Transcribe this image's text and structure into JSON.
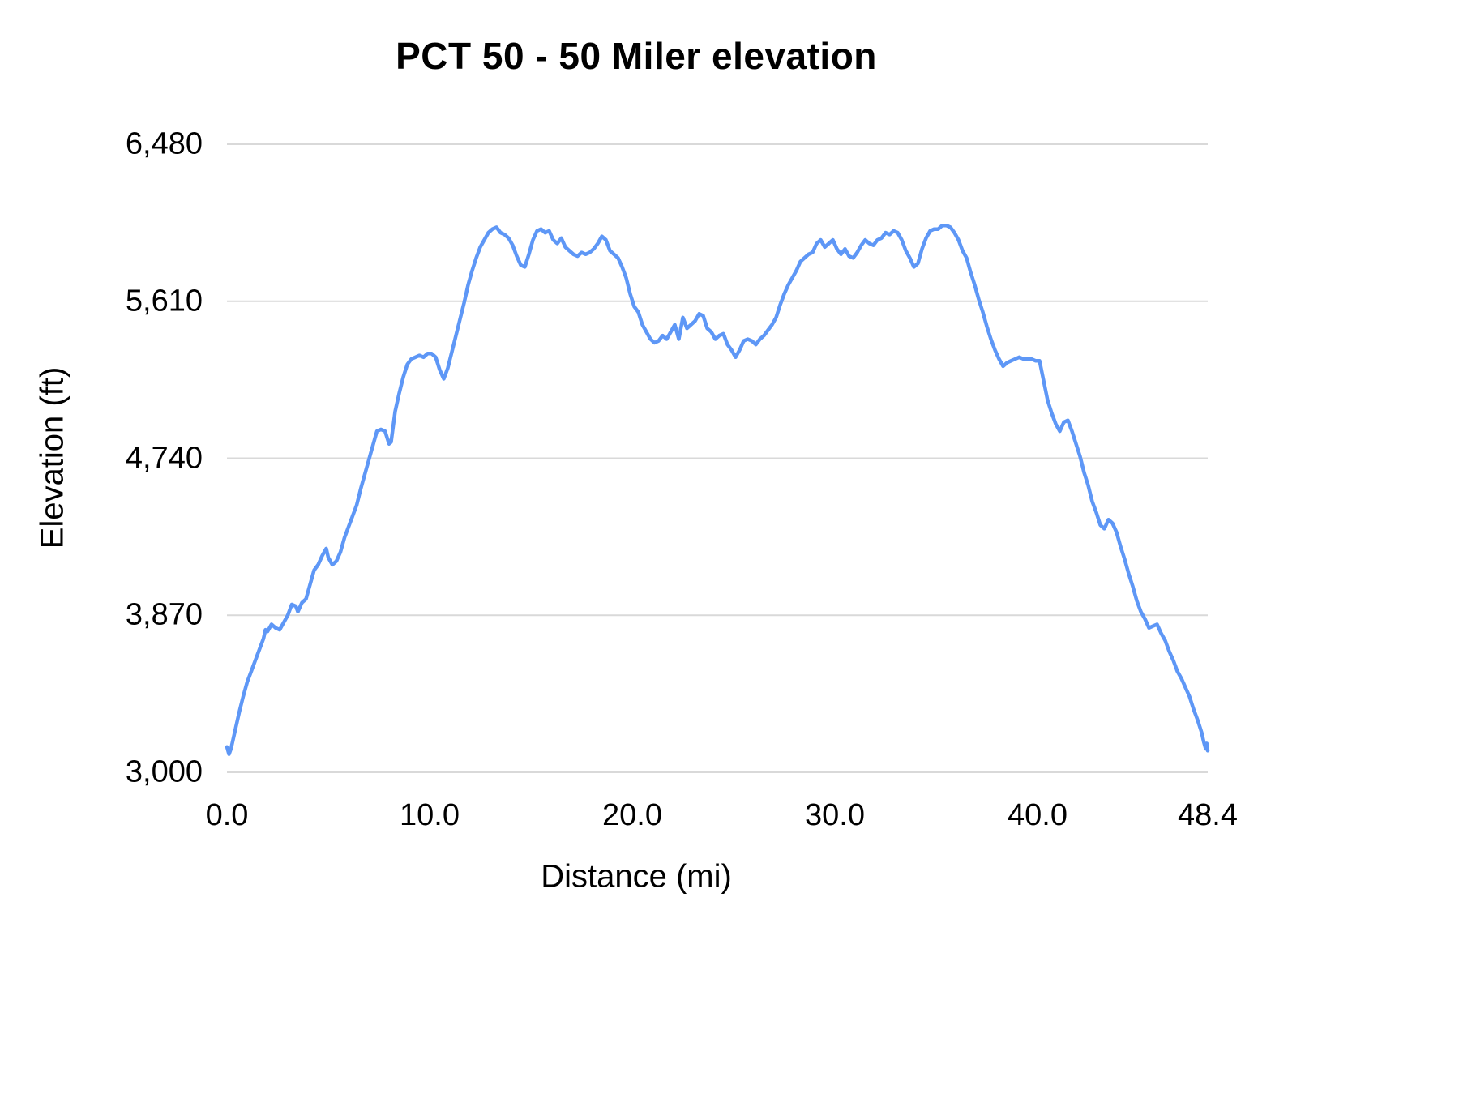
{
  "colors": {
    "line": "#5e97f6",
    "gridline": "#d9d9d9",
    "background": "#ffffff",
    "text": "#000000"
  },
  "chart_data": {
    "type": "line",
    "title": "PCT 50 - 50 Miler elevation",
    "xlabel": "Distance (mi)",
    "ylabel": "Elevation (ft)",
    "xlim": [
      0,
      48.4
    ],
    "ylim": [
      3000,
      6480
    ],
    "grid": "horizontal-only",
    "legend_position": "none",
    "y_ticks": [
      {
        "label": "6,480",
        "value": 6480
      },
      {
        "label": "5,610",
        "value": 5610
      },
      {
        "label": "4,740",
        "value": 4740
      },
      {
        "label": "3,870",
        "value": 3870
      },
      {
        "label": "3,000",
        "value": 3000
      }
    ],
    "x_ticks": [
      {
        "label": "0.0",
        "value": 0.0
      },
      {
        "label": "10.0",
        "value": 10.0
      },
      {
        "label": "20.0",
        "value": 20.0
      },
      {
        "label": "30.0",
        "value": 30.0
      },
      {
        "label": "40.0",
        "value": 40.0
      },
      {
        "label": "48.4",
        "value": 48.4
      }
    ],
    "series": [
      {
        "name": "Elevation",
        "points": [
          [
            0.0,
            3140
          ],
          [
            0.1,
            3100
          ],
          [
            0.2,
            3130
          ],
          [
            0.4,
            3230
          ],
          [
            0.6,
            3330
          ],
          [
            0.8,
            3420
          ],
          [
            1.0,
            3500
          ],
          [
            1.2,
            3560
          ],
          [
            1.4,
            3620
          ],
          [
            1.6,
            3680
          ],
          [
            1.8,
            3740
          ],
          [
            1.9,
            3790
          ],
          [
            2.0,
            3780
          ],
          [
            2.2,
            3820
          ],
          [
            2.4,
            3800
          ],
          [
            2.6,
            3790
          ],
          [
            2.8,
            3830
          ],
          [
            3.0,
            3870
          ],
          [
            3.2,
            3930
          ],
          [
            3.4,
            3920
          ],
          [
            3.5,
            3890
          ],
          [
            3.7,
            3940
          ],
          [
            3.9,
            3960
          ],
          [
            4.1,
            4040
          ],
          [
            4.3,
            4120
          ],
          [
            4.5,
            4150
          ],
          [
            4.7,
            4200
          ],
          [
            4.9,
            4240
          ],
          [
            5.0,
            4190
          ],
          [
            5.2,
            4150
          ],
          [
            5.4,
            4170
          ],
          [
            5.6,
            4220
          ],
          [
            5.8,
            4300
          ],
          [
            6.0,
            4360
          ],
          [
            6.2,
            4420
          ],
          [
            6.4,
            4480
          ],
          [
            6.6,
            4570
          ],
          [
            6.8,
            4650
          ],
          [
            7.0,
            4730
          ],
          [
            7.2,
            4810
          ],
          [
            7.4,
            4890
          ],
          [
            7.6,
            4900
          ],
          [
            7.8,
            4890
          ],
          [
            8.0,
            4820
          ],
          [
            8.1,
            4830
          ],
          [
            8.3,
            5000
          ],
          [
            8.5,
            5100
          ],
          [
            8.7,
            5190
          ],
          [
            8.9,
            5260
          ],
          [
            9.1,
            5290
          ],
          [
            9.3,
            5300
          ],
          [
            9.5,
            5310
          ],
          [
            9.7,
            5300
          ],
          [
            9.9,
            5320
          ],
          [
            10.1,
            5320
          ],
          [
            10.3,
            5300
          ],
          [
            10.5,
            5230
          ],
          [
            10.7,
            5180
          ],
          [
            10.9,
            5240
          ],
          [
            11.1,
            5330
          ],
          [
            11.3,
            5420
          ],
          [
            11.5,
            5510
          ],
          [
            11.7,
            5600
          ],
          [
            11.9,
            5700
          ],
          [
            12.1,
            5780
          ],
          [
            12.3,
            5850
          ],
          [
            12.5,
            5910
          ],
          [
            12.7,
            5950
          ],
          [
            12.9,
            5990
          ],
          [
            13.1,
            6010
          ],
          [
            13.3,
            6020
          ],
          [
            13.5,
            5990
          ],
          [
            13.7,
            5980
          ],
          [
            13.9,
            5960
          ],
          [
            14.1,
            5920
          ],
          [
            14.3,
            5860
          ],
          [
            14.5,
            5810
          ],
          [
            14.7,
            5800
          ],
          [
            14.9,
            5870
          ],
          [
            15.1,
            5950
          ],
          [
            15.3,
            6000
          ],
          [
            15.5,
            6010
          ],
          [
            15.7,
            5990
          ],
          [
            15.9,
            6000
          ],
          [
            16.1,
            5950
          ],
          [
            16.3,
            5930
          ],
          [
            16.5,
            5960
          ],
          [
            16.7,
            5910
          ],
          [
            16.9,
            5890
          ],
          [
            17.1,
            5870
          ],
          [
            17.3,
            5860
          ],
          [
            17.5,
            5880
          ],
          [
            17.7,
            5870
          ],
          [
            17.9,
            5880
          ],
          [
            18.1,
            5900
          ],
          [
            18.3,
            5930
          ],
          [
            18.5,
            5970
          ],
          [
            18.7,
            5950
          ],
          [
            18.9,
            5890
          ],
          [
            19.1,
            5870
          ],
          [
            19.3,
            5850
          ],
          [
            19.5,
            5800
          ],
          [
            19.7,
            5740
          ],
          [
            19.9,
            5650
          ],
          [
            20.1,
            5580
          ],
          [
            20.3,
            5550
          ],
          [
            20.5,
            5480
          ],
          [
            20.7,
            5440
          ],
          [
            20.9,
            5400
          ],
          [
            21.1,
            5380
          ],
          [
            21.3,
            5390
          ],
          [
            21.5,
            5420
          ],
          [
            21.7,
            5400
          ],
          [
            21.9,
            5440
          ],
          [
            22.1,
            5480
          ],
          [
            22.3,
            5400
          ],
          [
            22.5,
            5520
          ],
          [
            22.7,
            5460
          ],
          [
            22.9,
            5480
          ],
          [
            23.1,
            5500
          ],
          [
            23.3,
            5540
          ],
          [
            23.5,
            5530
          ],
          [
            23.7,
            5460
          ],
          [
            23.9,
            5440
          ],
          [
            24.1,
            5400
          ],
          [
            24.3,
            5420
          ],
          [
            24.5,
            5430
          ],
          [
            24.7,
            5370
          ],
          [
            24.9,
            5340
          ],
          [
            25.1,
            5300
          ],
          [
            25.3,
            5340
          ],
          [
            25.5,
            5390
          ],
          [
            25.7,
            5400
          ],
          [
            25.9,
            5390
          ],
          [
            26.1,
            5370
          ],
          [
            26.3,
            5400
          ],
          [
            26.5,
            5420
          ],
          [
            26.7,
            5450
          ],
          [
            26.9,
            5480
          ],
          [
            27.1,
            5520
          ],
          [
            27.3,
            5590
          ],
          [
            27.5,
            5650
          ],
          [
            27.7,
            5700
          ],
          [
            27.9,
            5740
          ],
          [
            28.1,
            5780
          ],
          [
            28.3,
            5830
          ],
          [
            28.5,
            5850
          ],
          [
            28.7,
            5870
          ],
          [
            28.9,
            5880
          ],
          [
            29.1,
            5930
          ],
          [
            29.3,
            5950
          ],
          [
            29.5,
            5910
          ],
          [
            29.7,
            5930
          ],
          [
            29.9,
            5950
          ],
          [
            30.1,
            5900
          ],
          [
            30.3,
            5870
          ],
          [
            30.5,
            5900
          ],
          [
            30.7,
            5860
          ],
          [
            30.9,
            5850
          ],
          [
            31.1,
            5880
          ],
          [
            31.3,
            5920
          ],
          [
            31.5,
            5950
          ],
          [
            31.7,
            5930
          ],
          [
            31.9,
            5920
          ],
          [
            32.1,
            5950
          ],
          [
            32.3,
            5960
          ],
          [
            32.5,
            5990
          ],
          [
            32.7,
            5980
          ],
          [
            32.9,
            6000
          ],
          [
            33.1,
            5990
          ],
          [
            33.3,
            5950
          ],
          [
            33.5,
            5890
          ],
          [
            33.7,
            5850
          ],
          [
            33.9,
            5800
          ],
          [
            34.1,
            5820
          ],
          [
            34.3,
            5900
          ],
          [
            34.5,
            5960
          ],
          [
            34.7,
            6000
          ],
          [
            34.9,
            6010
          ],
          [
            35.1,
            6010
          ],
          [
            35.3,
            6030
          ],
          [
            35.5,
            6030
          ],
          [
            35.7,
            6020
          ],
          [
            35.9,
            5990
          ],
          [
            36.1,
            5950
          ],
          [
            36.3,
            5890
          ],
          [
            36.5,
            5850
          ],
          [
            36.7,
            5770
          ],
          [
            36.9,
            5700
          ],
          [
            37.1,
            5620
          ],
          [
            37.3,
            5550
          ],
          [
            37.5,
            5470
          ],
          [
            37.7,
            5400
          ],
          [
            37.9,
            5340
          ],
          [
            38.1,
            5290
          ],
          [
            38.3,
            5250
          ],
          [
            38.5,
            5270
          ],
          [
            38.7,
            5280
          ],
          [
            38.9,
            5290
          ],
          [
            39.1,
            5300
          ],
          [
            39.3,
            5290
          ],
          [
            39.5,
            5290
          ],
          [
            39.7,
            5290
          ],
          [
            39.9,
            5280
          ],
          [
            40.1,
            5280
          ],
          [
            40.3,
            5170
          ],
          [
            40.5,
            5060
          ],
          [
            40.7,
            4990
          ],
          [
            40.9,
            4930
          ],
          [
            41.1,
            4890
          ],
          [
            41.3,
            4940
          ],
          [
            41.5,
            4950
          ],
          [
            41.7,
            4890
          ],
          [
            41.9,
            4820
          ],
          [
            42.1,
            4750
          ],
          [
            42.3,
            4660
          ],
          [
            42.5,
            4590
          ],
          [
            42.7,
            4500
          ],
          [
            42.9,
            4440
          ],
          [
            43.1,
            4370
          ],
          [
            43.3,
            4350
          ],
          [
            43.5,
            4400
          ],
          [
            43.7,
            4380
          ],
          [
            43.9,
            4330
          ],
          [
            44.1,
            4250
          ],
          [
            44.3,
            4180
          ],
          [
            44.5,
            4100
          ],
          [
            44.7,
            4030
          ],
          [
            44.9,
            3950
          ],
          [
            45.1,
            3890
          ],
          [
            45.3,
            3850
          ],
          [
            45.5,
            3800
          ],
          [
            45.7,
            3810
          ],
          [
            45.9,
            3820
          ],
          [
            46.1,
            3770
          ],
          [
            46.3,
            3730
          ],
          [
            46.5,
            3670
          ],
          [
            46.7,
            3620
          ],
          [
            46.9,
            3560
          ],
          [
            47.1,
            3520
          ],
          [
            47.3,
            3470
          ],
          [
            47.5,
            3420
          ],
          [
            47.7,
            3350
          ],
          [
            47.9,
            3290
          ],
          [
            48.1,
            3220
          ],
          [
            48.2,
            3170
          ],
          [
            48.3,
            3130
          ],
          [
            48.35,
            3160
          ],
          [
            48.4,
            3120
          ]
        ]
      }
    ]
  }
}
